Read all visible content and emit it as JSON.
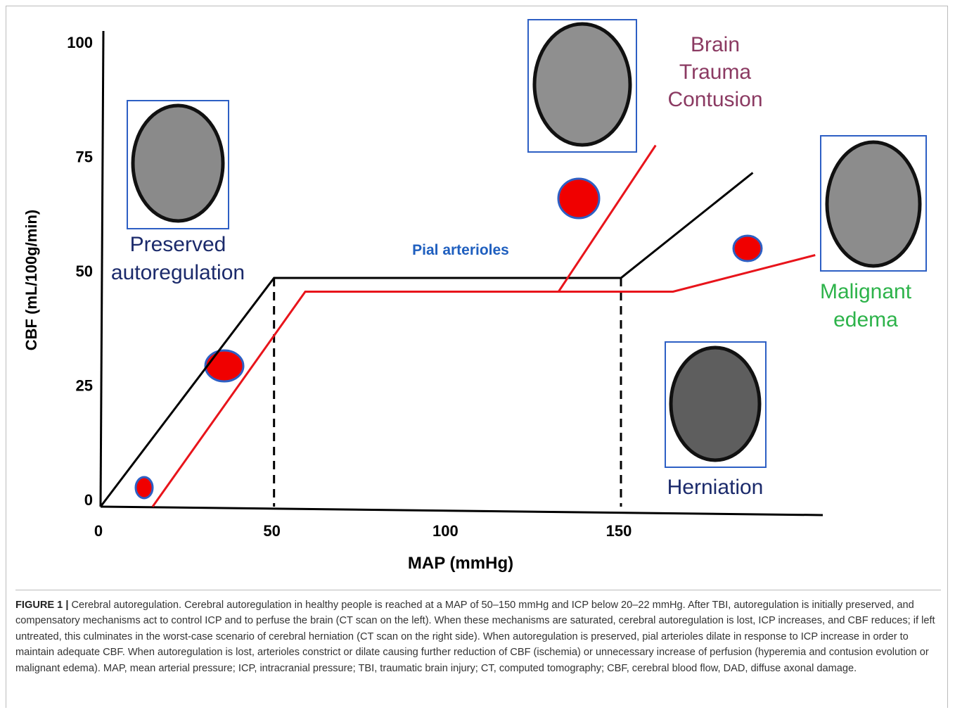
{
  "chart_data": {
    "type": "line",
    "xlabel": "MAP (mmHg)",
    "ylabel": "CBF (mL/100g/min)",
    "xlim": [
      0,
      208
    ],
    "ylim": [
      0,
      104
    ],
    "xticks": [
      0,
      50,
      100,
      150
    ],
    "yticks": [
      0,
      25,
      50,
      75,
      100
    ],
    "series": [
      {
        "color": "#000000",
        "x": [
          0,
          50,
          150,
          188
        ],
        "values": [
          0,
          50,
          50,
          73
        ]
      },
      {
        "color": "#e8141b",
        "x": [
          15,
          59,
          165,
          206
        ],
        "values": [
          0,
          47,
          47,
          55
        ]
      },
      {
        "color": "#e8141b",
        "x": [
          132,
          160
        ],
        "values": [
          47,
          79
        ]
      }
    ],
    "vlines": [
      50,
      150
    ],
    "annotations": [
      "Preserved autoregulation",
      "Pial arterioles",
      "Brain Trauma Contusion",
      "Malignant edema",
      "Herniation"
    ]
  },
  "caption": {
    "label": "FIGURE 1 |",
    "text": "Cerebral autoregulation. Cerebral autoregulation in healthy people is reached at a MAP of 50–150 mmHg and ICP below 20–22 mmHg. After TBI, autoregulation is initially preserved, and compensatory mechanisms act to control ICP and to perfuse the brain (CT scan on the left). When these mechanisms are saturated, cerebral autoregulation is lost, ICP increases, and CBF reduces; if left untreated, this culminates in the worst-case scenario of cerebral herniation (CT scan on the right side). When autoregulation is preserved, pial arterioles dilate in response to ICP increase in order to maintain adequate CBF. When autoregulation is lost, arterioles constrict or dilate causing further reduction of CBF (ischemia) or unnecessary increase of perfusion (hyperemia and contusion evolution or malignant edema). MAP, mean arterial pressure; ICP, intracranial pressure; TBI, traumatic brain injury; CT, computed tomography; CBF, cerebral blood flow, DAD, diffuse axonal damage."
  }
}
